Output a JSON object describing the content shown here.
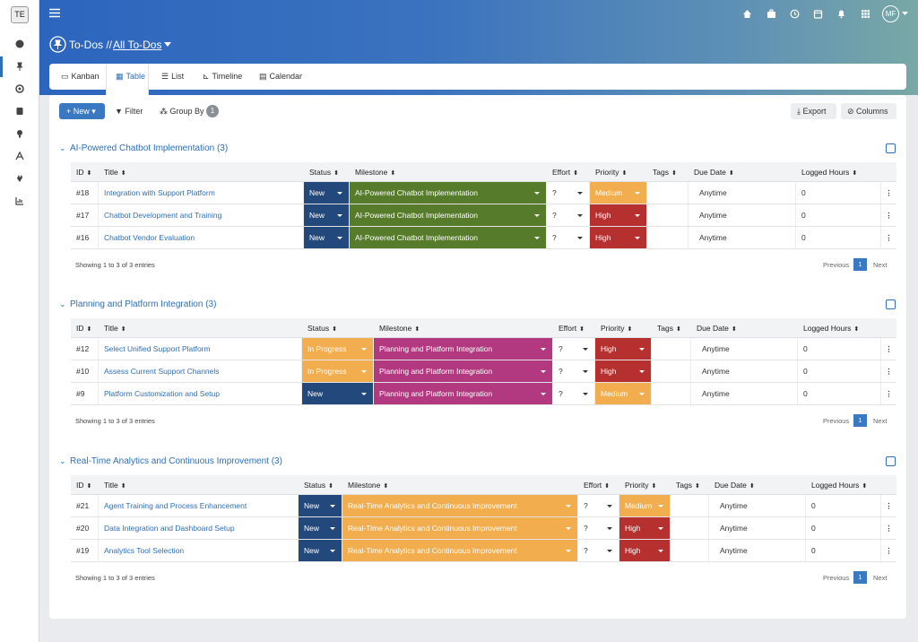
{
  "sidebar": {
    "logo": "TE"
  },
  "topbar": {
    "avatar": "MF"
  },
  "header": {
    "section": "To-Dos //",
    "view": "All To-Dos"
  },
  "tabs": [
    "Kanban",
    "Table",
    "List",
    "Timeline",
    "Calendar"
  ],
  "toolbar": {
    "new": "New",
    "filter": "Filter",
    "group_by": "Group By",
    "group_count": 1,
    "export": "Export",
    "columns": "Columns"
  },
  "groups": [
    {
      "title": "AI-Powered Chatbot Implementation (3)",
      "columns": [
        "ID",
        "Title",
        "Status",
        "Milestone",
        "Effort",
        "Priority",
        "Tags",
        "Due Date",
        "Logged Hours"
      ],
      "rows": [
        {
          "id": "#18",
          "title": "Integration with Support Platform",
          "status": {
            "label": "New",
            "color": "#23497c"
          },
          "milestone": {
            "label": "AI-Powered Chatbot Implementation",
            "color": "#567b2a"
          },
          "effort": "?",
          "priority": {
            "label": "Medium",
            "color": "#f2ad4e"
          },
          "due_date": "Anytime",
          "logged_hours": 0
        },
        {
          "id": "#17",
          "title": "Chatbot Development and Training",
          "status": {
            "label": "New",
            "color": "#23497c"
          },
          "milestone": {
            "label": "AI-Powered Chatbot Implementation",
            "color": "#567b2a"
          },
          "effort": "?",
          "priority": {
            "label": "High",
            "color": "#b5302f"
          },
          "due_date": "Anytime",
          "logged_hours": 0
        },
        {
          "id": "#16",
          "title": "Chatbot Vendor Evaluation",
          "status": {
            "label": "New",
            "color": "#23497c"
          },
          "milestone": {
            "label": "AI-Powered Chatbot Implementation",
            "color": "#567b2a"
          },
          "effort": "?",
          "priority": {
            "label": "High",
            "color": "#b5302f"
          },
          "due_date": "Anytime",
          "logged_hours": 0
        }
      ],
      "footer": "Showing 1 to 3 of 3 entries",
      "pagination": {
        "previous": "Previous",
        "page": 1,
        "next": "Next"
      }
    },
    {
      "title": "Planning and Platform Integration (3)",
      "columns": [
        "ID",
        "Title",
        "Status",
        "Milestone",
        "Effort",
        "Priority",
        "Tags",
        "Due Date",
        "Logged Hours"
      ],
      "rows": [
        {
          "id": "#12",
          "title": "Select Unified Support Platform",
          "status": {
            "label": "In Progress",
            "color": "#f2ad4e"
          },
          "milestone": {
            "label": "Planning and Platform Integration",
            "color": "#b2397f"
          },
          "effort": "?",
          "priority": {
            "label": "High",
            "color": "#b5302f"
          },
          "due_date": "Anytime",
          "logged_hours": 0
        },
        {
          "id": "#10",
          "title": "Assess Current Support Channels",
          "status": {
            "label": "In Progress",
            "color": "#f2ad4e"
          },
          "milestone": {
            "label": "Planning and Platform Integration",
            "color": "#b2397f"
          },
          "effort": "?",
          "priority": {
            "label": "High",
            "color": "#b5302f"
          },
          "due_date": "Anytime",
          "logged_hours": 0
        },
        {
          "id": "#9",
          "title": "Platform Customization and Setup",
          "status": {
            "label": "New",
            "color": "#23497c"
          },
          "milestone": {
            "label": "Planning and Platform Integration",
            "color": "#b2397f"
          },
          "effort": "?",
          "priority": {
            "label": "Medium",
            "color": "#f2ad4e"
          },
          "due_date": "Anytime",
          "logged_hours": 0
        }
      ],
      "footer": "Showing 1 to 3 of 3 entries",
      "pagination": {
        "previous": "Previous",
        "page": 1,
        "next": "Next"
      }
    },
    {
      "title": "Real-Time Analytics and Continuous Improvement (3)",
      "columns": [
        "ID",
        "Title",
        "Status",
        "Milestone",
        "Effort",
        "Priority",
        "Tags",
        "Due Date",
        "Logged Hours"
      ],
      "rows": [
        {
          "id": "#21",
          "title": "Agent Training and Process Enhancement",
          "status": {
            "label": "New",
            "color": "#23497c"
          },
          "milestone": {
            "label": "Real-Time Analytics and Continuous Improvement",
            "color": "#f2ad4e"
          },
          "effort": "?",
          "priority": {
            "label": "Medium",
            "color": "#f2ad4e"
          },
          "due_date": "Anytime",
          "logged_hours": 0
        },
        {
          "id": "#20",
          "title": "Data Integration and Dashboard Setup",
          "status": {
            "label": "New",
            "color": "#23497c"
          },
          "milestone": {
            "label": "Real-Time Analytics and Continuous Improvement",
            "color": "#f2ad4e"
          },
          "effort": "?",
          "priority": {
            "label": "High",
            "color": "#b5302f"
          },
          "due_date": "Anytime",
          "logged_hours": 0
        },
        {
          "id": "#19",
          "title": "Analytics Tool Selection",
          "status": {
            "label": "New",
            "color": "#23497c"
          },
          "milestone": {
            "label": "Real-Time Analytics and Continuous Improvement",
            "color": "#f2ad4e"
          },
          "effort": "?",
          "priority": {
            "label": "High",
            "color": "#b5302f"
          },
          "due_date": "Anytime",
          "logged_hours": 0
        }
      ],
      "footer": "Showing 1 to 3 of 3 entries",
      "pagination": {
        "previous": "Previous",
        "page": 1,
        "next": "Next"
      }
    }
  ]
}
